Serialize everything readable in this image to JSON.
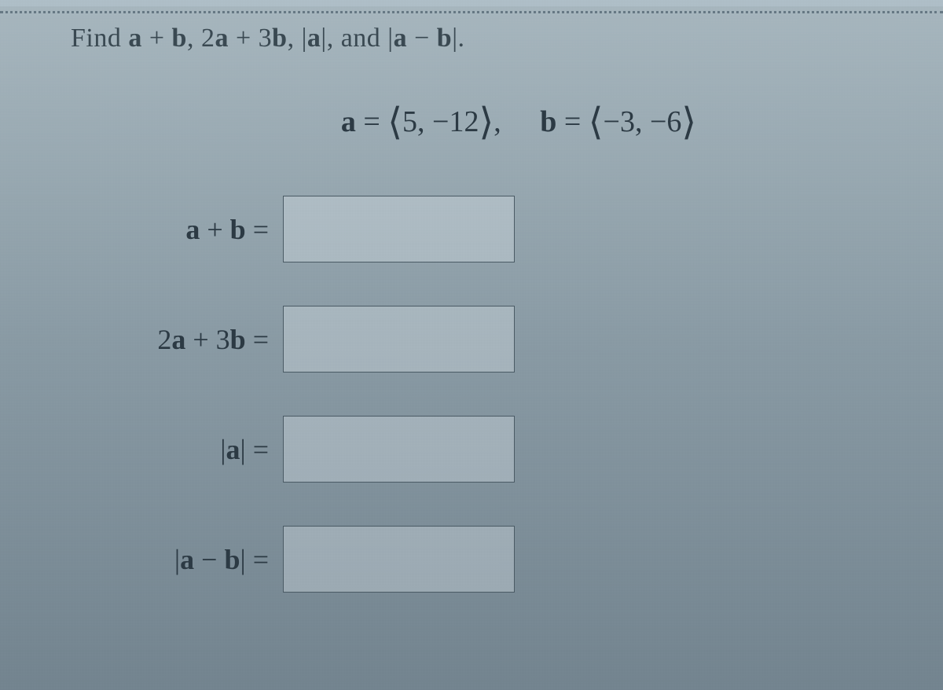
{
  "instruction": {
    "prefix": "Find ",
    "part1": "a",
    "plus1": " + ",
    "part2": "b",
    "comma1": ", 2",
    "part3": "a",
    "plus2": " + 3",
    "part4": "b",
    "comma2": ", |",
    "part5": "a",
    "mid": "|, and |",
    "part6": "a",
    "minus": " − ",
    "part7": "b",
    "suffix": "|."
  },
  "given": {
    "a_label": "a",
    "a_eq": " = ",
    "a_open": "⟨",
    "a_val": "5, −12",
    "a_close": "⟩",
    "spacer": ",    ",
    "b_label": "b",
    "b_eq": " = ",
    "b_open": "⟨",
    "b_val": "−3, −6",
    "b_close": "⟩"
  },
  "rows": [
    {
      "label_var1": "a",
      "label_mid": " + ",
      "label_var2": "b",
      "label_suffix": "  =",
      "name": "a-plus-b"
    },
    {
      "label_prefix": "2",
      "label_var1": "a",
      "label_mid": " + 3",
      "label_var2": "b",
      "label_suffix": "  =",
      "name": "two-a-plus-three-b"
    },
    {
      "label_prefix": "|",
      "label_var1": "a",
      "label_suffix": "|  =",
      "name": "magnitude-a"
    },
    {
      "label_prefix": "|",
      "label_var1": "a",
      "label_mid": " − ",
      "label_var2": "b",
      "label_suffix": "|  =",
      "name": "magnitude-a-minus-b"
    }
  ],
  "styling": {
    "background_gradient_top": "#a8b8c0",
    "background_gradient_mid": "#8a9ba5",
    "background_gradient_bottom": "#748590",
    "text_color": "#2c3a44",
    "instruction_color": "#3a4952",
    "input_border_color": "#4a5a64",
    "input_background": "rgba(220,228,234,0.35)",
    "dotted_border_color": "rgba(40,60,75,0.5)",
    "instruction_fontsize": 34,
    "given_fontsize": 38,
    "label_fontsize": 36,
    "input_width": 295,
    "input_height": 85,
    "row_spacing": 55
  }
}
